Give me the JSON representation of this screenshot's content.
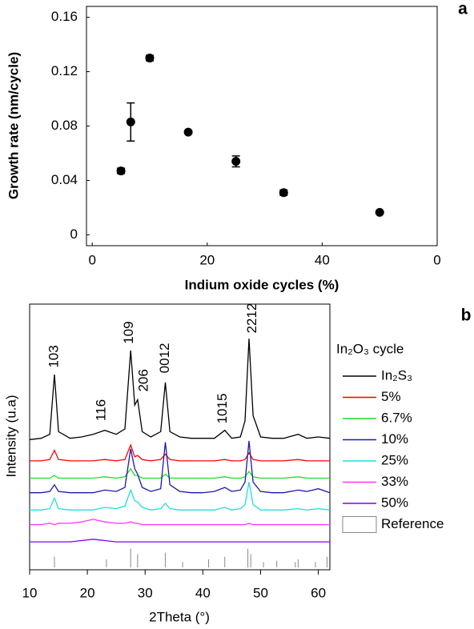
{
  "chart_data": [
    {
      "type": "scatter",
      "panel": "a",
      "xlabel": "Indium oxide cycles (%)",
      "ylabel": "Growth rate (nm/cycle)",
      "x": [
        5,
        6.7,
        10,
        16.7,
        25,
        33.3,
        50
      ],
      "values": [
        0.047,
        0.083,
        0.13,
        0.0755,
        0.054,
        0.031,
        0.0165
      ],
      "errors": [
        0.002,
        0.014,
        0.002,
        0.001,
        0.004,
        0.002,
        0.001
      ],
      "color": "#000000",
      "xlim": [
        -1,
        60
      ],
      "xticks": [
        0,
        20,
        40,
        {
          "value": 60,
          "label": "0"
        }
      ],
      "ylim": [
        -0.008,
        0.168
      ],
      "yticks": [
        0,
        0.04,
        0.08,
        0.12,
        0.16
      ]
    },
    {
      "type": "line",
      "panel": "b",
      "xlabel": "2Theta (°)",
      "ylabel": "Intensity (u.a)",
      "legend_title": "In₂O₃ cycle",
      "xlim": [
        10,
        62
      ],
      "xticks": [
        10,
        20,
        30,
        40,
        50,
        60
      ],
      "ylim": [
        0,
        100
      ],
      "x": [
        10,
        12,
        13.5,
        14.3,
        15,
        17,
        19,
        21,
        23,
        25,
        26.5,
        27.5,
        28.2,
        28.7,
        29.5,
        31,
        32.7,
        33.5,
        34.3,
        36,
        38,
        40,
        42,
        43.8,
        45,
        46.5,
        47.3,
        48,
        48.7,
        50,
        52,
        54,
        56.5,
        58,
        60,
        62
      ],
      "series": [
        {
          "name": "In₂S₃",
          "color": "#000000",
          "values": [
            49,
            49.5,
            51,
            73.5,
            52,
            49.5,
            50,
            51,
            52.5,
            51,
            53,
            82.5,
            62,
            64,
            52,
            50,
            52,
            70.5,
            52,
            50,
            49.5,
            49.5,
            49.5,
            52.5,
            49.5,
            50,
            56,
            87,
            58,
            50,
            49.5,
            49.5,
            51,
            49.5,
            50,
            49.5
          ]
        },
        {
          "name": "5%",
          "color": "#ff0000",
          "values": [
            41,
            41,
            41.5,
            45,
            41.5,
            41,
            41,
            41,
            41.5,
            41,
            41.5,
            47,
            42.5,
            43,
            41.5,
            41,
            41.5,
            43.5,
            41.5,
            41,
            41,
            41,
            41,
            41.5,
            41,
            41,
            41.5,
            44,
            41.5,
            41,
            41,
            41,
            41.5,
            41,
            41,
            41
          ]
        },
        {
          "name": "6.7%",
          "color": "#22dd22",
          "values": [
            34.5,
            34.5,
            34.5,
            35.5,
            34.5,
            34.5,
            34.5,
            34.5,
            35,
            34.5,
            35,
            38,
            35.5,
            35.5,
            34.5,
            34.5,
            34.5,
            36,
            34.5,
            34.5,
            34.5,
            34.5,
            34.5,
            35,
            34.5,
            34.5,
            35,
            37,
            35,
            34.5,
            34.5,
            34.5,
            35,
            34.5,
            34.5,
            34.5
          ]
        },
        {
          "name": "10%",
          "color": "#1a1aaa",
          "values": [
            29,
            29,
            29.5,
            32,
            29.5,
            29,
            29,
            29,
            30,
            29.5,
            31,
            45.5,
            38,
            36,
            31,
            29.5,
            30.5,
            48,
            32,
            29.5,
            29,
            29,
            29.5,
            31,
            29.5,
            30,
            33,
            48.5,
            33,
            29.5,
            29,
            29,
            30,
            29.5,
            30.5,
            29
          ]
        },
        {
          "name": "25%",
          "color": "#22dddd",
          "values": [
            22.5,
            22.5,
            23,
            27,
            23,
            22.5,
            22.5,
            22.5,
            23.5,
            23,
            24,
            30,
            26,
            25.5,
            23.5,
            22.5,
            23,
            25,
            23,
            22.5,
            22.5,
            22.5,
            22.5,
            23.5,
            22.5,
            23,
            24.5,
            33,
            24.5,
            22.5,
            22.5,
            22.5,
            23,
            22.5,
            23,
            22.5
          ]
        },
        {
          "name": "33%",
          "color": "#ff33ff",
          "values": [
            17,
            17,
            17.5,
            17,
            17.5,
            17.5,
            18,
            19,
            18,
            17.5,
            17.5,
            18,
            17.5,
            17.5,
            17,
            17,
            17,
            17,
            17,
            17,
            17,
            17,
            17,
            17,
            17,
            17,
            17,
            17.5,
            17,
            17,
            17,
            17,
            17,
            17,
            17,
            17
          ]
        },
        {
          "name": "50%",
          "color": "#8000ff",
          "values": [
            10.5,
            10.5,
            10.5,
            10.5,
            10.5,
            10.5,
            11,
            11.5,
            11,
            10.5,
            10.5,
            10.5,
            10.5,
            10.5,
            10.5,
            10.5,
            10.5,
            10.5,
            10.5,
            10.5,
            10.5,
            10.5,
            10.5,
            10.5,
            10.5,
            10.5,
            10.5,
            10.5,
            10.5,
            10.5,
            10.5,
            10.5,
            10.5,
            10.5,
            10.5,
            10.5
          ]
        }
      ],
      "reference": {
        "name": "Reference",
        "color": "#888888",
        "positions": [
          14.3,
          23.3,
          27.5,
          28.7,
          33.5,
          36.5,
          41,
          43.8,
          47.8,
          48.3,
          50.5,
          52.8,
          56,
          56.5,
          59.5,
          61.5
        ],
        "heights": [
          4,
          3,
          7,
          5,
          5.5,
          2,
          3,
          4,
          7,
          5,
          2,
          2.5,
          2,
          3,
          2,
          4
        ]
      },
      "annotations": [
        {
          "text": "103",
          "x": 14.3,
          "y": 76
        },
        {
          "text": "116",
          "x": 22.5,
          "y": 56
        },
        {
          "text": "109",
          "x": 27.3,
          "y": 85
        },
        {
          "text": "206",
          "x": 29.8,
          "y": 67
        },
        {
          "text": "0012",
          "x": 33.5,
          "y": 74
        },
        {
          "text": "1015",
          "x": 43.5,
          "y": 55
        },
        {
          "text": "2212",
          "x": 48.6,
          "y": 89
        }
      ]
    }
  ]
}
